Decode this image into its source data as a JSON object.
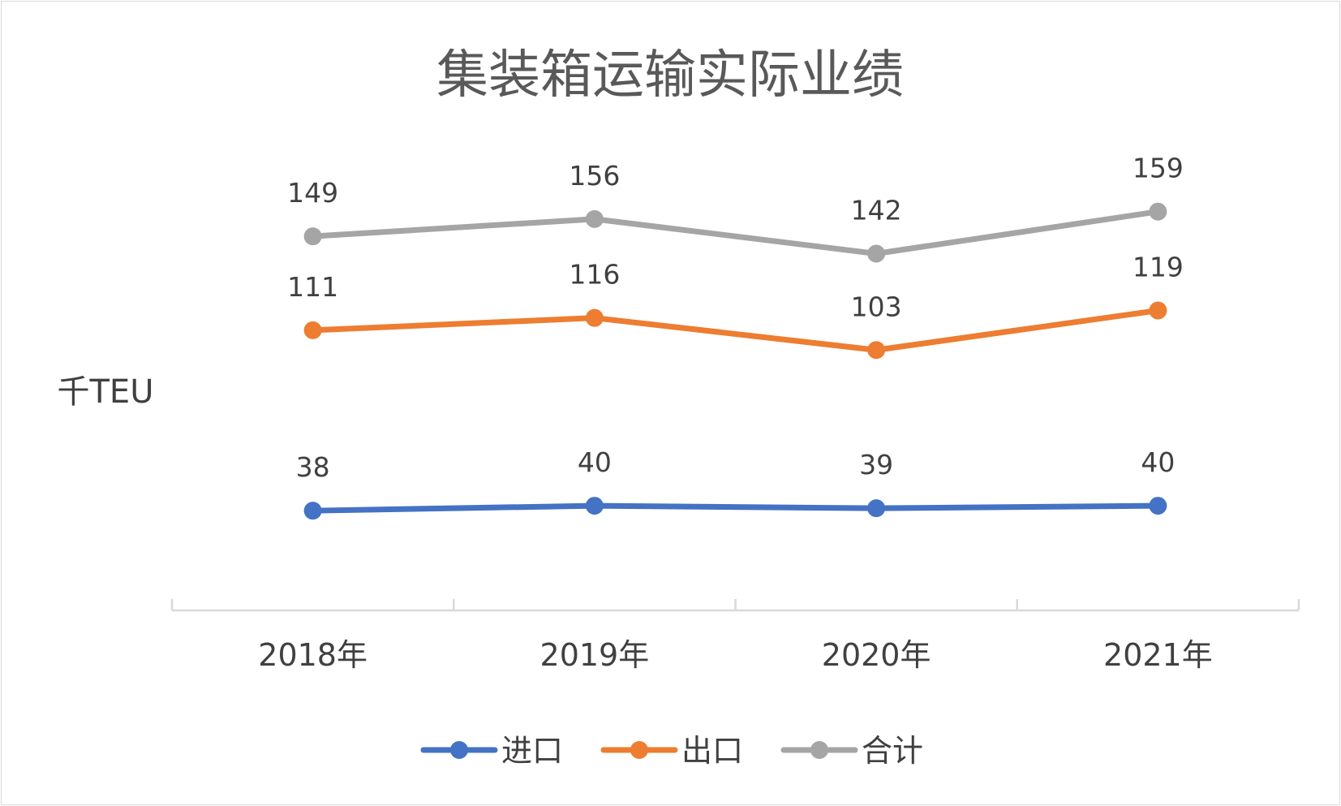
{
  "chart_data": {
    "type": "line",
    "title": "集装箱运输实际业绩",
    "ylabel": "千TEU",
    "xlabel": "",
    "categories": [
      "2018年",
      "2019年",
      "2020年",
      "2021年"
    ],
    "ylim": [
      20,
      175
    ],
    "grid": false,
    "legend_position": "bottom",
    "series": [
      {
        "name": "进口",
        "color": "#4472c4",
        "values": [
          38,
          40,
          39,
          40
        ]
      },
      {
        "name": "出口",
        "color": "#ed7d31",
        "values": [
          111,
          116,
          103,
          119
        ]
      },
      {
        "name": "合计",
        "color": "#a5a5a5",
        "values": [
          149,
          156,
          142,
          159
        ]
      }
    ]
  }
}
